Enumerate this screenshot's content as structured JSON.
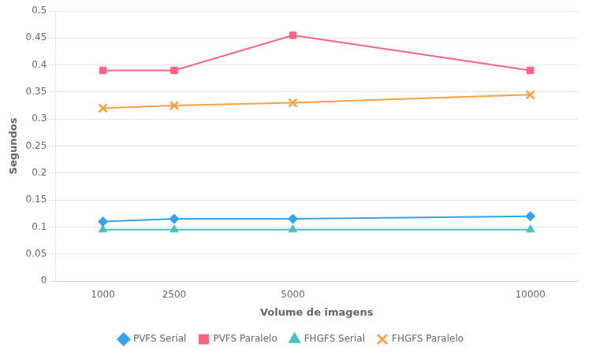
{
  "chart_data": {
    "type": "line",
    "x_label": "Volume de imagens",
    "y_label": "Segundos",
    "x": [
      1000,
      2500,
      5000,
      10000
    ],
    "series": [
      {
        "name": "PVFS Serial",
        "marker": "diamond",
        "values": [
          0.11,
          0.115,
          0.115,
          0.12
        ]
      },
      {
        "name": "PVFS Paralelo",
        "marker": "square",
        "values": [
          0.39,
          0.39,
          0.455,
          0.39
        ]
      },
      {
        "name": "FHGFS Serial",
        "marker": "triangle",
        "values": [
          0.095,
          0.095,
          0.095,
          0.095
        ]
      },
      {
        "name": "FHGFS Paralelo",
        "marker": "x",
        "values": [
          0.32,
          0.325,
          0.33,
          0.345
        ]
      }
    ],
    "xlim": [
      0,
      11000
    ],
    "xticks": [
      1000,
      2500,
      5000,
      10000
    ],
    "ylim": [
      0,
      0.5
    ],
    "yticks": [
      0,
      0.05,
      0.1,
      0.15,
      0.2,
      0.25,
      0.3,
      0.35,
      0.4,
      0.45,
      0.5
    ],
    "grid": "y",
    "legend": "bottom"
  }
}
